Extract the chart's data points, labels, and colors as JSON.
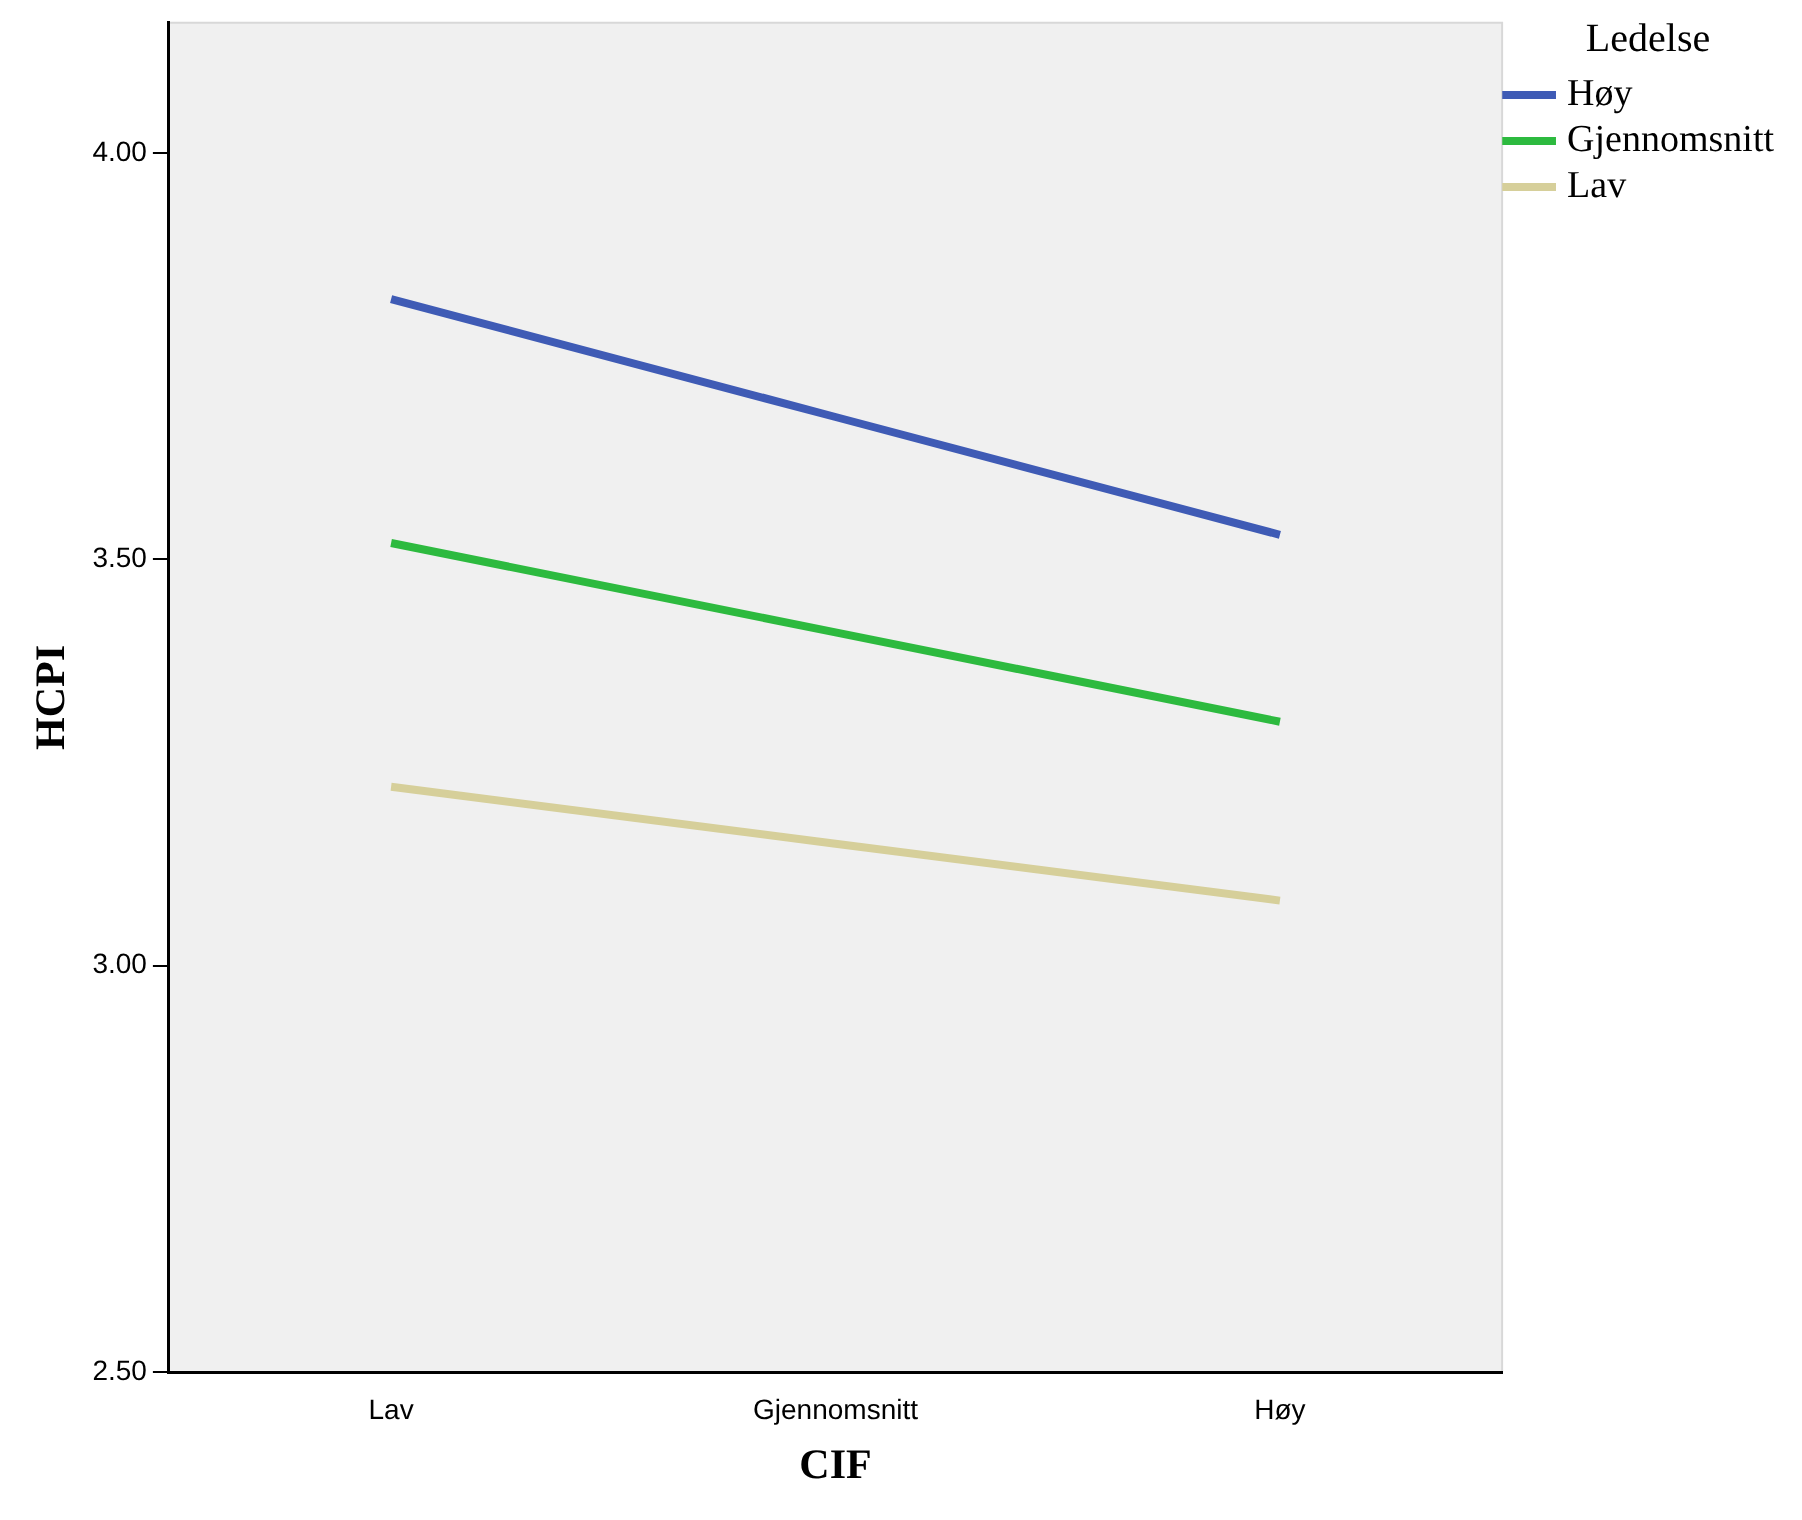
{
  "chart_data": {
    "type": "line",
    "xlabel": "CIF",
    "ylabel": "HCPI",
    "legend_title": "Ledelse",
    "categories": [
      "Lav",
      "Gjennomsnitt",
      "Høy"
    ],
    "series": [
      {
        "name": "Høy",
        "color": "#3f5bb5",
        "values": [
          3.82,
          3.675,
          3.53
        ]
      },
      {
        "name": "Gjennomsnitt",
        "color": "#2dba3f",
        "values": [
          3.52,
          3.41,
          3.3
        ]
      },
      {
        "name": "Lav",
        "color": "#d6cf9a",
        "values": [
          3.22,
          3.15,
          3.08
        ]
      }
    ],
    "ylim": [
      2.5,
      4.16
    ],
    "yticks": [
      {
        "value": 2.5,
        "label": "2.50"
      },
      {
        "value": 3,
        "label": "3.00"
      },
      {
        "value": 3.5,
        "label": "3.50"
      },
      {
        "value": 4,
        "label": "4.00"
      }
    ],
    "grid": false,
    "legend": "top right",
    "marker": "none",
    "line_style": "solid"
  }
}
